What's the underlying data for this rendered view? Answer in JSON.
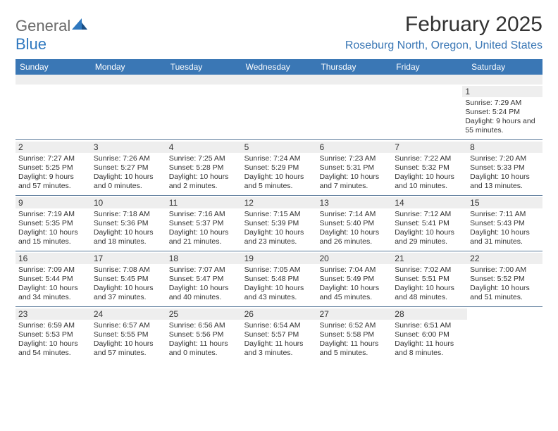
{
  "logo": {
    "general": "General",
    "blue": "Blue"
  },
  "title": "February 2025",
  "location": "Roseburg North, Oregon, United States",
  "colors": {
    "header_bg": "#3a77b5",
    "header_text": "#ffffff",
    "spacer_bg": "#eeeeee",
    "accent_text": "#3a77b5",
    "body_text": "#333333",
    "row_border": "#5a7a9a"
  },
  "dayHeaders": [
    "Sunday",
    "Monday",
    "Tuesday",
    "Wednesday",
    "Thursday",
    "Friday",
    "Saturday"
  ],
  "weeks": [
    [
      null,
      null,
      null,
      null,
      null,
      null,
      {
        "n": "1",
        "sunrise": "7:29 AM",
        "sunset": "5:24 PM",
        "daylight": "9 hours and 55 minutes."
      }
    ],
    [
      {
        "n": "2",
        "sunrise": "7:27 AM",
        "sunset": "5:25 PM",
        "daylight": "9 hours and 57 minutes."
      },
      {
        "n": "3",
        "sunrise": "7:26 AM",
        "sunset": "5:27 PM",
        "daylight": "10 hours and 0 minutes."
      },
      {
        "n": "4",
        "sunrise": "7:25 AM",
        "sunset": "5:28 PM",
        "daylight": "10 hours and 2 minutes."
      },
      {
        "n": "5",
        "sunrise": "7:24 AM",
        "sunset": "5:29 PM",
        "daylight": "10 hours and 5 minutes."
      },
      {
        "n": "6",
        "sunrise": "7:23 AM",
        "sunset": "5:31 PM",
        "daylight": "10 hours and 7 minutes."
      },
      {
        "n": "7",
        "sunrise": "7:22 AM",
        "sunset": "5:32 PM",
        "daylight": "10 hours and 10 minutes."
      },
      {
        "n": "8",
        "sunrise": "7:20 AM",
        "sunset": "5:33 PM",
        "daylight": "10 hours and 13 minutes."
      }
    ],
    [
      {
        "n": "9",
        "sunrise": "7:19 AM",
        "sunset": "5:35 PM",
        "daylight": "10 hours and 15 minutes."
      },
      {
        "n": "10",
        "sunrise": "7:18 AM",
        "sunset": "5:36 PM",
        "daylight": "10 hours and 18 minutes."
      },
      {
        "n": "11",
        "sunrise": "7:16 AM",
        "sunset": "5:37 PM",
        "daylight": "10 hours and 21 minutes."
      },
      {
        "n": "12",
        "sunrise": "7:15 AM",
        "sunset": "5:39 PM",
        "daylight": "10 hours and 23 minutes."
      },
      {
        "n": "13",
        "sunrise": "7:14 AM",
        "sunset": "5:40 PM",
        "daylight": "10 hours and 26 minutes."
      },
      {
        "n": "14",
        "sunrise": "7:12 AM",
        "sunset": "5:41 PM",
        "daylight": "10 hours and 29 minutes."
      },
      {
        "n": "15",
        "sunrise": "7:11 AM",
        "sunset": "5:43 PM",
        "daylight": "10 hours and 31 minutes."
      }
    ],
    [
      {
        "n": "16",
        "sunrise": "7:09 AM",
        "sunset": "5:44 PM",
        "daylight": "10 hours and 34 minutes."
      },
      {
        "n": "17",
        "sunrise": "7:08 AM",
        "sunset": "5:45 PM",
        "daylight": "10 hours and 37 minutes."
      },
      {
        "n": "18",
        "sunrise": "7:07 AM",
        "sunset": "5:47 PM",
        "daylight": "10 hours and 40 minutes."
      },
      {
        "n": "19",
        "sunrise": "7:05 AM",
        "sunset": "5:48 PM",
        "daylight": "10 hours and 43 minutes."
      },
      {
        "n": "20",
        "sunrise": "7:04 AM",
        "sunset": "5:49 PM",
        "daylight": "10 hours and 45 minutes."
      },
      {
        "n": "21",
        "sunrise": "7:02 AM",
        "sunset": "5:51 PM",
        "daylight": "10 hours and 48 minutes."
      },
      {
        "n": "22",
        "sunrise": "7:00 AM",
        "sunset": "5:52 PM",
        "daylight": "10 hours and 51 minutes."
      }
    ],
    [
      {
        "n": "23",
        "sunrise": "6:59 AM",
        "sunset": "5:53 PM",
        "daylight": "10 hours and 54 minutes."
      },
      {
        "n": "24",
        "sunrise": "6:57 AM",
        "sunset": "5:55 PM",
        "daylight": "10 hours and 57 minutes."
      },
      {
        "n": "25",
        "sunrise": "6:56 AM",
        "sunset": "5:56 PM",
        "daylight": "11 hours and 0 minutes."
      },
      {
        "n": "26",
        "sunrise": "6:54 AM",
        "sunset": "5:57 PM",
        "daylight": "11 hours and 3 minutes."
      },
      {
        "n": "27",
        "sunrise": "6:52 AM",
        "sunset": "5:58 PM",
        "daylight": "11 hours and 5 minutes."
      },
      {
        "n": "28",
        "sunrise": "6:51 AM",
        "sunset": "6:00 PM",
        "daylight": "11 hours and 8 minutes."
      },
      null
    ]
  ],
  "labels": {
    "sunrise": "Sunrise: ",
    "sunset": "Sunset: ",
    "daylight": "Daylight: "
  }
}
